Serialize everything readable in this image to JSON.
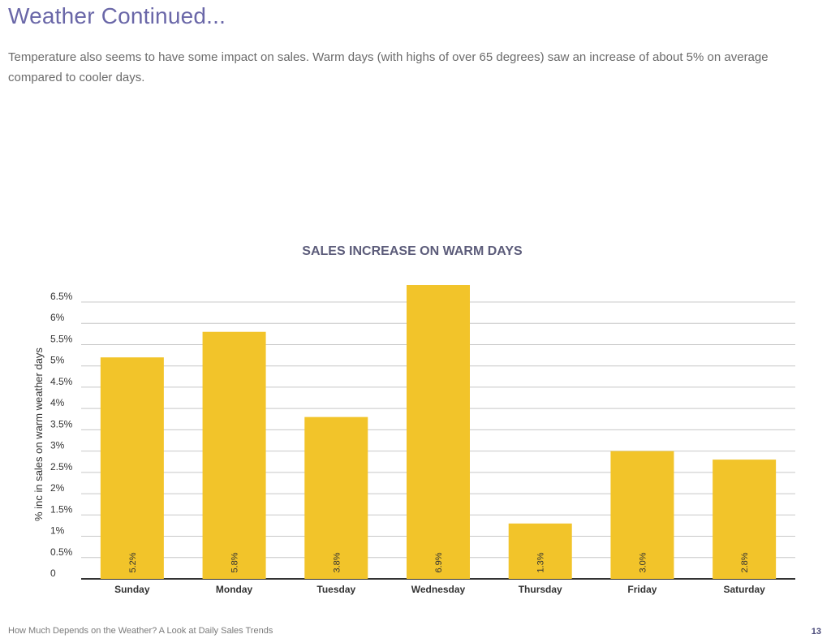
{
  "page": {
    "title": "Weather Continued...",
    "intro": "Temperature also seems to have some impact on sales. Warm days (with highs of over 65 degrees) saw an increase of about 5% on average compared to cooler days.",
    "footer": "How Much Depends on the Weather? A Look at Daily Sales Trends",
    "page_number": "13"
  },
  "colors": {
    "bar": "#f2c42a",
    "title": "#6a67a8",
    "chart_title": "#5c5c7a",
    "grid": "#c8c8c8",
    "baseline": "#333333",
    "text": "#333333"
  },
  "chart_data": {
    "type": "bar",
    "title": "SALES INCREASE ON WARM DAYS",
    "xlabel": "",
    "ylabel": "% inc in sales on warm weather days",
    "categories": [
      "Sunday",
      "Monday",
      "Tuesday",
      "Wednesday",
      "Thursday",
      "Friday",
      "Saturday"
    ],
    "values": [
      5.2,
      5.8,
      3.8,
      6.9,
      1.3,
      3.0,
      2.8
    ],
    "data_labels": [
      "5.2%",
      "5.8%",
      "3.8%",
      "6.9%",
      "1.3%",
      "3.0%",
      "2.8%"
    ],
    "ylim": [
      0,
      6.5
    ],
    "yticks": [
      0,
      0.5,
      1,
      1.5,
      2,
      2.5,
      3,
      3.5,
      4,
      4.5,
      5,
      5.5,
      6,
      6.5
    ],
    "ytick_labels": [
      "0",
      "0.5%",
      "1%",
      "1.5%",
      "2%",
      "2.5%",
      "3%",
      "3.5%",
      "4%",
      "4.5%",
      "5%",
      "5.5%",
      "6%",
      "6.5%"
    ],
    "grid": true,
    "legend": "none"
  }
}
